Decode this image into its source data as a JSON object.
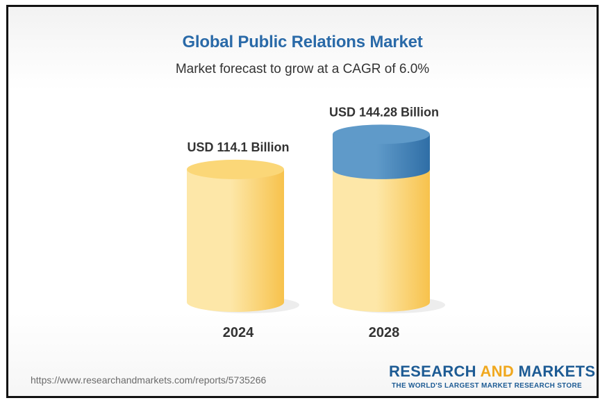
{
  "chart_data": {
    "type": "bar",
    "title": "Global Public Relations Market",
    "subtitle": "Market forecast to grow at a CAGR of 6.0%",
    "categories": [
      "2024",
      "2028"
    ],
    "values": [
      114.1,
      144.28
    ],
    "data_labels": [
      "USD 114.1 Billion",
      "USD 144.28 Billion"
    ],
    "unit": "USD Billion",
    "grid": false,
    "legend": "none",
    "colors": {
      "base": "#f7c24c",
      "base_light": "#fde7a8",
      "growth": "#2f6ea6",
      "growth_light": "#5f9ac9"
    }
  },
  "footer": {
    "source_url": "https://www.researchandmarkets.com/reports/5735266",
    "brand_part1": "RESEARCH ",
    "brand_part2": "AND",
    "brand_part3": " MARKETS",
    "brand_tagline": "THE WORLD'S LARGEST MARKET RESEARCH STORE"
  }
}
